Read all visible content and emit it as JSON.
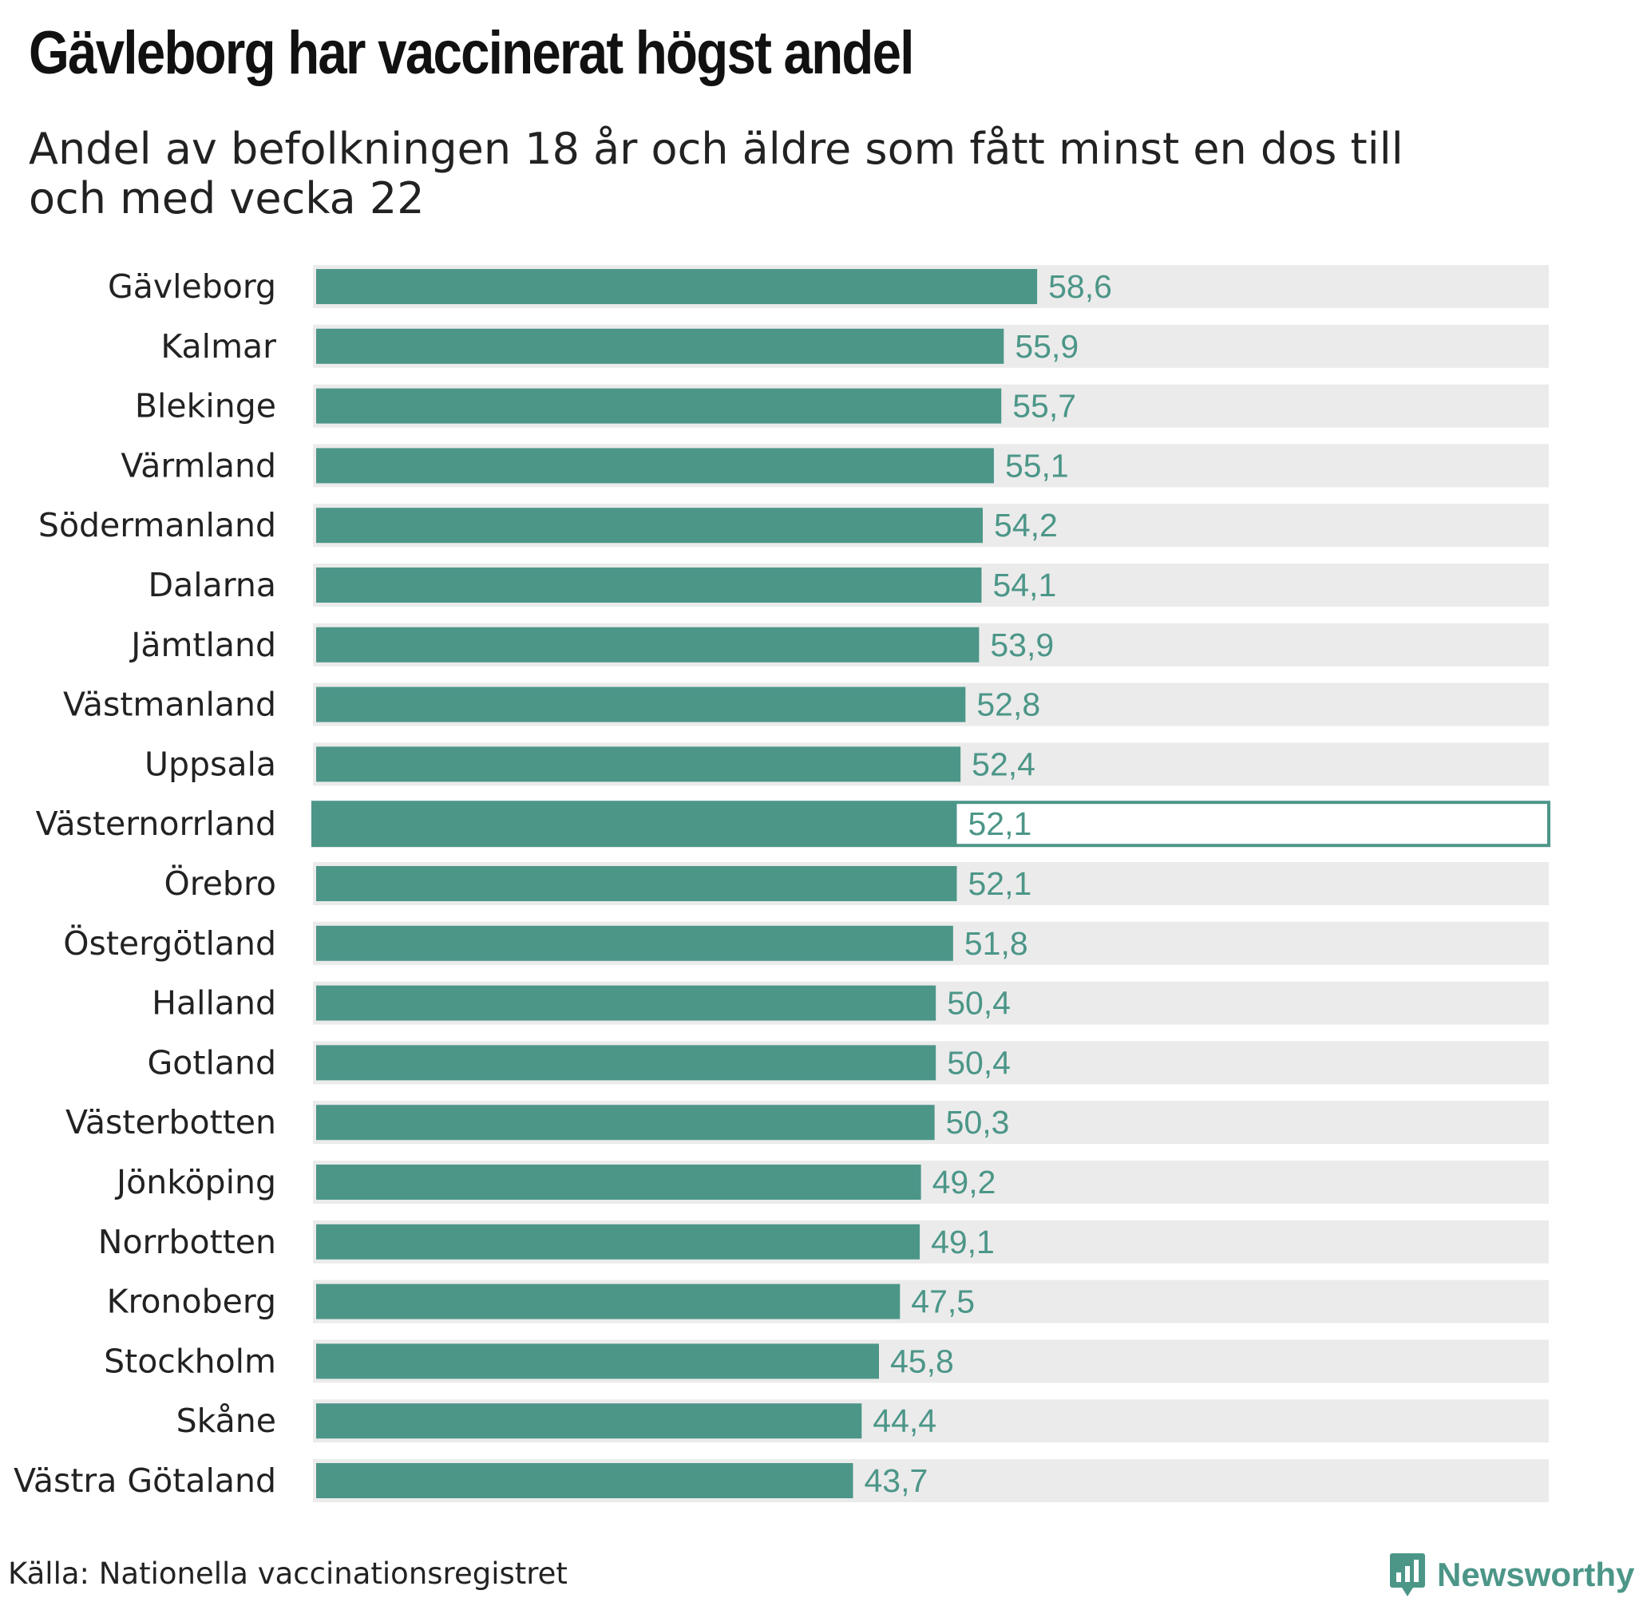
{
  "header": {
    "title": "Gävleborg har vaccinerat högst andel",
    "subtitle": "Andel av befolkningen 18 år och äldre som fått minst en dos till och med vecka 22"
  },
  "footer": {
    "source": "Källa: Nationella vaccinationsregistret",
    "brand": "Newsworthy"
  },
  "colors": {
    "bar": "#4c9688",
    "track": "#ebebeb",
    "value_label": "#4c9688",
    "highlight_outline": "#4c9688"
  },
  "chart_data": {
    "type": "bar",
    "orientation": "horizontal",
    "title": "Gävleborg har vaccinerat högst andel",
    "subtitle": "Andel av befolkningen 18 år och äldre som fått minst en dos till och med vecka 22",
    "xlim": [
      0,
      100
    ],
    "grid": false,
    "value_format": "decimal-comma",
    "highlighted_category": "Västernorrland",
    "categories": [
      "Gävleborg",
      "Kalmar",
      "Blekinge",
      "Värmland",
      "Södermanland",
      "Dalarna",
      "Jämtland",
      "Västmanland",
      "Uppsala",
      "Västernorrland",
      "Örebro",
      "Östergötland",
      "Halland",
      "Gotland",
      "Västerbotten",
      "Jönköping",
      "Norrbotten",
      "Kronoberg",
      "Stockholm",
      "Skåne",
      "Västra Götaland"
    ],
    "values": [
      58.6,
      55.9,
      55.7,
      55.1,
      54.2,
      54.1,
      53.9,
      52.8,
      52.4,
      52.1,
      52.1,
      51.8,
      50.4,
      50.4,
      50.3,
      49.2,
      49.1,
      47.5,
      45.8,
      44.4,
      43.7
    ],
    "value_labels": [
      "58,6",
      "55,9",
      "55,7",
      "55,1",
      "54,2",
      "54,1",
      "53,9",
      "52,8",
      "52,4",
      "52,1",
      "52,1",
      "51,8",
      "50,4",
      "50,4",
      "50,3",
      "49,2",
      "49,1",
      "47,5",
      "45,8",
      "44,4",
      "43,7"
    ]
  }
}
